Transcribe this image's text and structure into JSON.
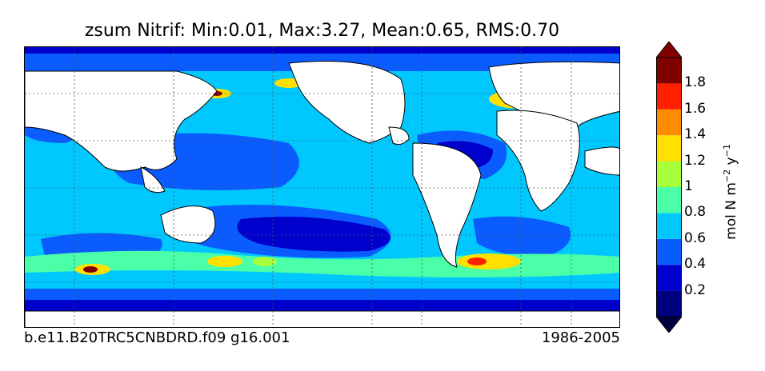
{
  "title": "zsum Nitrif: Min:0.01, Max:3.27, Mean:0.65, RMS:0.70",
  "footer": {
    "left": "b.e11.B20TRC5CNBDRD.f09 g16.001",
    "right": "1986-2005"
  },
  "colorbar": {
    "ticks": [
      "0.2",
      "0.4",
      "0.6",
      "0.8",
      "1",
      "1.2",
      "1.4",
      "1.6",
      "1.8"
    ],
    "units_main": "mol N m",
    "units_sup1": "−2",
    "units_mid": " y",
    "units_sup2": "−1",
    "colors": [
      "#000080",
      "#0000cd",
      "#0a5cff",
      "#00c8ff",
      "#4bffa8",
      "#a8ff3c",
      "#ffe000",
      "#ff8c00",
      "#ff2000",
      "#800000"
    ]
  },
  "chart_data": {
    "type": "heatmap",
    "title": "zsum Nitrif: Min:0.01, Max:3.27, Mean:0.65, RMS:0.70",
    "variable": "zsum Nitrif",
    "stats": {
      "min": 0.01,
      "max": 3.27,
      "mean": 0.65,
      "rms": 0.7
    },
    "colorbar_range": [
      0,
      2
    ],
    "colorbar_levels": [
      0.2,
      0.4,
      0.6,
      0.8,
      1.0,
      1.2,
      1.4,
      1.6,
      1.8
    ],
    "colorbar_extend": "both",
    "grid": true,
    "legend_placement": "right"
  }
}
